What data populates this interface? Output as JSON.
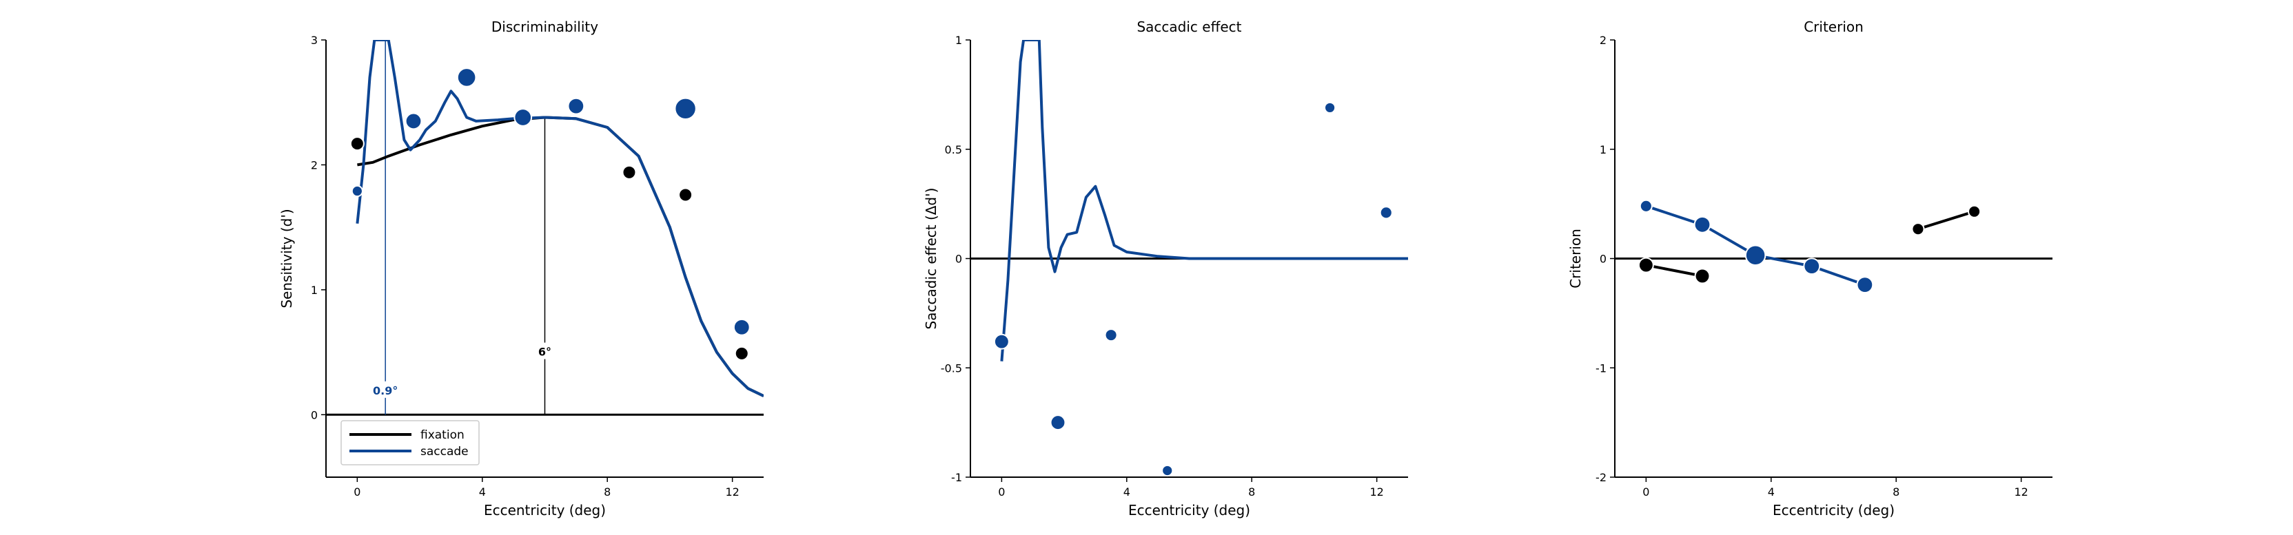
{
  "colors": {
    "fixation": "#000000",
    "saccade": "#0d4593"
  },
  "chart_data": [
    {
      "type": "scatter",
      "title": "Discriminability",
      "xlabel": "Eccentricity (deg)",
      "ylabel": "Sensitivity (d')",
      "xlim": [
        -1,
        13
      ],
      "ylim": [
        -0.5,
        3
      ],
      "xticks": [
        0,
        4,
        8,
        12
      ],
      "yticks": [
        0,
        1,
        2,
        3
      ],
      "zero_line": true,
      "legend": {
        "placement": "bottom-left",
        "entries": [
          "fixation",
          "saccade"
        ]
      },
      "annotations": [
        {
          "text": "0.9°",
          "x": 0.9,
          "y_label": 0.19,
          "y_top": 3.0,
          "color": "#0d4593"
        },
        {
          "text": "6°",
          "x": 6.0,
          "y_label": 0.5,
          "y_top": 2.38,
          "color": "#000000"
        }
      ],
      "series": [
        {
          "name": "fixation",
          "color": "#000000",
          "kind": "points",
          "points": [
            [
              0,
              2.17,
              1
            ],
            [
              8.7,
              1.94,
              1
            ],
            [
              10.5,
              1.76,
              1
            ],
            [
              12.3,
              0.49,
              1
            ]
          ]
        },
        {
          "name": "saccade",
          "color": "#0d4593",
          "kind": "points",
          "points": [
            [
              0,
              1.79,
              0.8
            ],
            [
              1.8,
              2.35,
              1.2
            ],
            [
              3.5,
              2.7,
              1.4
            ],
            [
              5.3,
              2.38,
              1.3
            ],
            [
              7.0,
              2.47,
              1.2
            ],
            [
              10.5,
              2.45,
              1.6
            ],
            [
              12.3,
              0.7,
              1.2
            ]
          ]
        },
        {
          "name": "fixation",
          "color": "#000000",
          "kind": "line",
          "points": [
            [
              0,
              2.0
            ],
            [
              0.5,
              2.02
            ],
            [
              1,
              2.07
            ],
            [
              2,
              2.16
            ],
            [
              3,
              2.24
            ],
            [
              4,
              2.31
            ],
            [
              5,
              2.36
            ],
            [
              6,
              2.38
            ],
            [
              7,
              2.37
            ],
            [
              8,
              2.3
            ],
            [
              9,
              2.07
            ],
            [
              10,
              1.5
            ],
            [
              10.5,
              1.1
            ],
            [
              11,
              0.75
            ],
            [
              11.5,
              0.5
            ],
            [
              12,
              0.33
            ],
            [
              12.5,
              0.21
            ],
            [
              13,
              0.15
            ]
          ]
        },
        {
          "name": "saccade",
          "color": "#0d4593",
          "kind": "line",
          "points": [
            [
              0,
              1.53
            ],
            [
              0.2,
              2.0
            ],
            [
              0.4,
              2.7
            ],
            [
              0.55,
              3.0
            ],
            [
              0.85,
              3.0
            ],
            [
              1.0,
              3.0
            ],
            [
              1.2,
              2.7
            ],
            [
              1.5,
              2.2
            ],
            [
              1.7,
              2.12
            ],
            [
              2.0,
              2.2
            ],
            [
              2.2,
              2.28
            ],
            [
              2.5,
              2.35
            ],
            [
              2.8,
              2.5
            ],
            [
              3.0,
              2.59
            ],
            [
              3.2,
              2.53
            ],
            [
              3.5,
              2.38
            ],
            [
              3.8,
              2.35
            ],
            [
              4.5,
              2.36
            ],
            [
              5,
              2.37
            ],
            [
              6,
              2.38
            ],
            [
              7,
              2.37
            ],
            [
              8,
              2.3
            ],
            [
              9,
              2.07
            ],
            [
              10,
              1.5
            ],
            [
              10.5,
              1.1
            ],
            [
              11,
              0.75
            ],
            [
              11.5,
              0.5
            ],
            [
              12,
              0.33
            ],
            [
              12.5,
              0.21
            ],
            [
              13,
              0.15
            ]
          ]
        }
      ]
    },
    {
      "type": "scatter",
      "title": "Saccadic effect",
      "xlabel": "Eccentricity (deg)",
      "ylabel": "Saccadic effect (Δd')",
      "xlim": [
        -1,
        13
      ],
      "ylim": [
        -1,
        1
      ],
      "xticks": [
        0,
        4,
        8,
        12
      ],
      "yticks": [
        -1,
        -0.5,
        0,
        0.5,
        1
      ],
      "zero_line": true,
      "series": [
        {
          "name": "saccade",
          "color": "#0d4593",
          "kind": "points",
          "points": [
            [
              0,
              -0.38,
              1.1
            ],
            [
              1.8,
              -0.75,
              1.1
            ],
            [
              3.5,
              -0.35,
              0.9
            ],
            [
              5.3,
              -0.97,
              0.8
            ],
            [
              10.5,
              0.69,
              0.8
            ],
            [
              12.3,
              0.21,
              0.9
            ]
          ]
        },
        {
          "name": "saccade",
          "color": "#0d4593",
          "kind": "line",
          "points": [
            [
              0,
              -0.47
            ],
            [
              0.2,
              -0.1
            ],
            [
              0.4,
              0.4
            ],
            [
              0.6,
              0.9
            ],
            [
              0.7,
              1.0
            ],
            [
              1.2,
              1.0
            ],
            [
              1.3,
              0.6
            ],
            [
              1.5,
              0.05
            ],
            [
              1.7,
              -0.06
            ],
            [
              1.9,
              0.05
            ],
            [
              2.1,
              0.11
            ],
            [
              2.4,
              0.12
            ],
            [
              2.7,
              0.28
            ],
            [
              3.0,
              0.33
            ],
            [
              3.3,
              0.2
            ],
            [
              3.6,
              0.06
            ],
            [
              4,
              0.03
            ],
            [
              5,
              0.01
            ],
            [
              6,
              0.0
            ],
            [
              13,
              0.0
            ]
          ]
        }
      ]
    },
    {
      "type": "line",
      "title": "Criterion",
      "xlabel": "Eccentricity (deg)",
      "ylabel": "Criterion",
      "xlim": [
        -1,
        13
      ],
      "ylim": [
        -2,
        2
      ],
      "xticks": [
        0,
        4,
        8,
        12
      ],
      "yticks": [
        -2,
        -1,
        0,
        1,
        2
      ],
      "zero_line": true,
      "series": [
        {
          "name": "fixation",
          "color": "#000000",
          "kind": "connected",
          "points": [
            [
              0,
              -0.06,
              1.1
            ],
            [
              1.8,
              -0.16,
              1.1
            ]
          ]
        },
        {
          "name": "fixation",
          "color": "#000000",
          "kind": "connected",
          "points": [
            [
              8.7,
              0.27,
              0.9
            ],
            [
              10.5,
              0.43,
              0.9
            ]
          ]
        },
        {
          "name": "saccade",
          "color": "#0d4593",
          "kind": "connected",
          "points": [
            [
              0,
              0.48,
              0.9
            ],
            [
              1.8,
              0.31,
              1.2
            ],
            [
              3.5,
              0.03,
              1.5
            ],
            [
              5.3,
              -0.07,
              1.2
            ],
            [
              7.0,
              -0.24,
              1.2
            ]
          ]
        }
      ]
    }
  ]
}
